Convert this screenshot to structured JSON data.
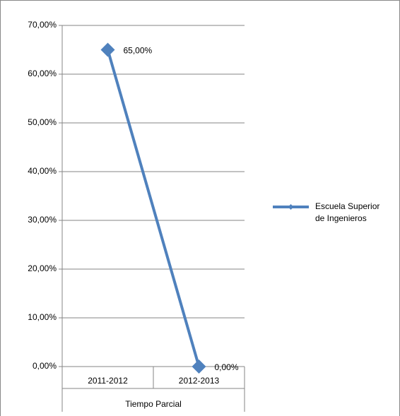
{
  "chart_data": {
    "type": "line",
    "categories": [
      "2011-2012",
      "2012-2013"
    ],
    "x_group_label": "Tiempo Parcial",
    "series": [
      {
        "name": "Escuela Superior de Ingenieros",
        "color": "#4f81bd",
        "values": [
          65,
          0
        ],
        "value_labels": [
          "65,00%",
          "0,00%"
        ]
      }
    ],
    "ylim": [
      0,
      70
    ],
    "yticks": [
      {
        "value": 0,
        "label": "0,00%"
      },
      {
        "value": 10,
        "label": "10,00%"
      },
      {
        "value": 20,
        "label": "20,00%"
      },
      {
        "value": 30,
        "label": "30,00%"
      },
      {
        "value": 40,
        "label": "40,00%"
      },
      {
        "value": 50,
        "label": "50,00%"
      },
      {
        "value": 60,
        "label": "60,00%"
      },
      {
        "value": 70,
        "label": "70,00%"
      }
    ],
    "grid": true,
    "legend": "right"
  }
}
